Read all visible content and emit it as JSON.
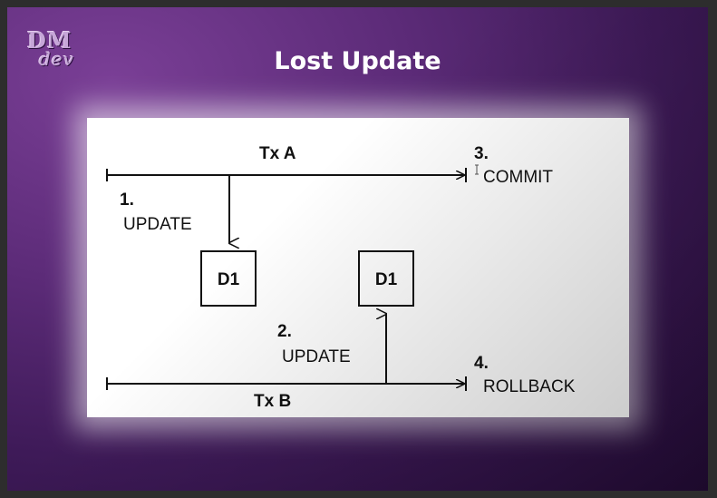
{
  "logo": {
    "line1": "DM",
    "line2": "dev"
  },
  "title": "Lost Update",
  "diagram": {
    "tx_a_label": "Tx A",
    "tx_b_label": "Tx B",
    "step1_num": "1.",
    "step1_label": "UPDATE",
    "step2_num": "2.",
    "step2_label": "UPDATE",
    "step3_num": "3.",
    "step3_label": "COMMIT",
    "step4_num": "4.",
    "step4_label": "ROLLBACK",
    "box1_label": "D1",
    "box2_label": "D1"
  },
  "colors": {
    "ink": "#111111",
    "slide_accent": "#5c2b78"
  }
}
